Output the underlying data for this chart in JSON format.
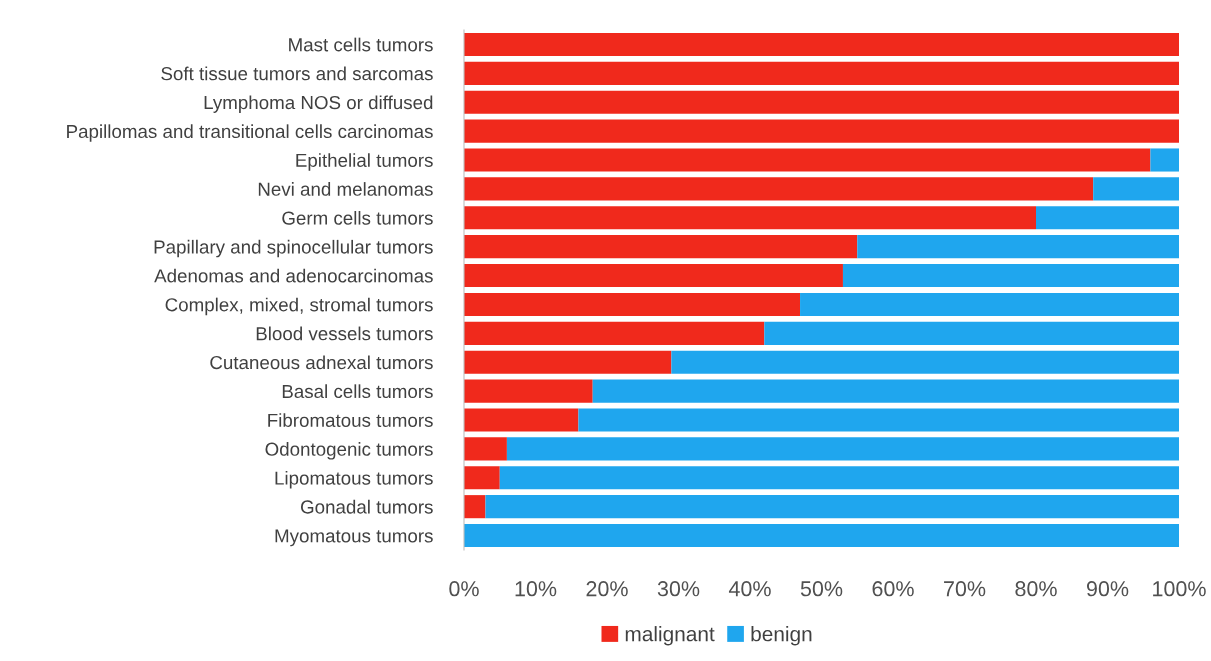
{
  "chart_data": {
    "type": "bar",
    "orientation": "horizontal",
    "stacked": true,
    "categories": [
      "Mast cells tumors",
      "Soft tissue tumors and sarcomas",
      "Lymphoma NOS or diffused",
      "Papillomas and transitional cells carcinomas",
      "Epithelial tumors",
      "Nevi and melanomas",
      "Germ cells tumors",
      "Papillary and spinocellular tumors",
      "Adenomas and adenocarcinomas",
      "Complex, mixed, stromal tumors",
      "Blood vessels tumors",
      "Cutaneous adnexal tumors",
      "Basal cells tumors",
      "Fibromatous tumors",
      "Odontogenic tumors",
      "Lipomatous tumors",
      "Gonadal tumors",
      "Myomatous tumors"
    ],
    "series": [
      {
        "name": "malignant",
        "color": "#f0291c",
        "values": [
          100,
          100,
          100,
          100,
          96,
          88,
          80,
          55,
          53,
          47,
          42,
          29,
          18,
          16,
          6,
          5,
          3,
          0
        ]
      },
      {
        "name": "benign",
        "color": "#1fa6ee",
        "values": [
          0,
          0,
          0,
          0,
          4,
          12,
          20,
          45,
          47,
          53,
          58,
          71,
          82,
          84,
          94,
          95,
          97,
          100
        ]
      }
    ],
    "xlim": [
      0,
      100
    ],
    "xticks": [
      {
        "value": 0,
        "label": "0%"
      },
      {
        "value": 10,
        "label": "10%"
      },
      {
        "value": 20,
        "label": "20%"
      },
      {
        "value": 30,
        "label": "30%"
      },
      {
        "value": 40,
        "label": "40%"
      },
      {
        "value": 50,
        "label": "50%"
      },
      {
        "value": 60,
        "label": "60%"
      },
      {
        "value": 70,
        "label": "70%"
      },
      {
        "value": 80,
        "label": "80%"
      },
      {
        "value": 90,
        "label": "90%"
      },
      {
        "value": 100,
        "label": "100%"
      }
    ],
    "grid": false,
    "legend": "bottom"
  }
}
